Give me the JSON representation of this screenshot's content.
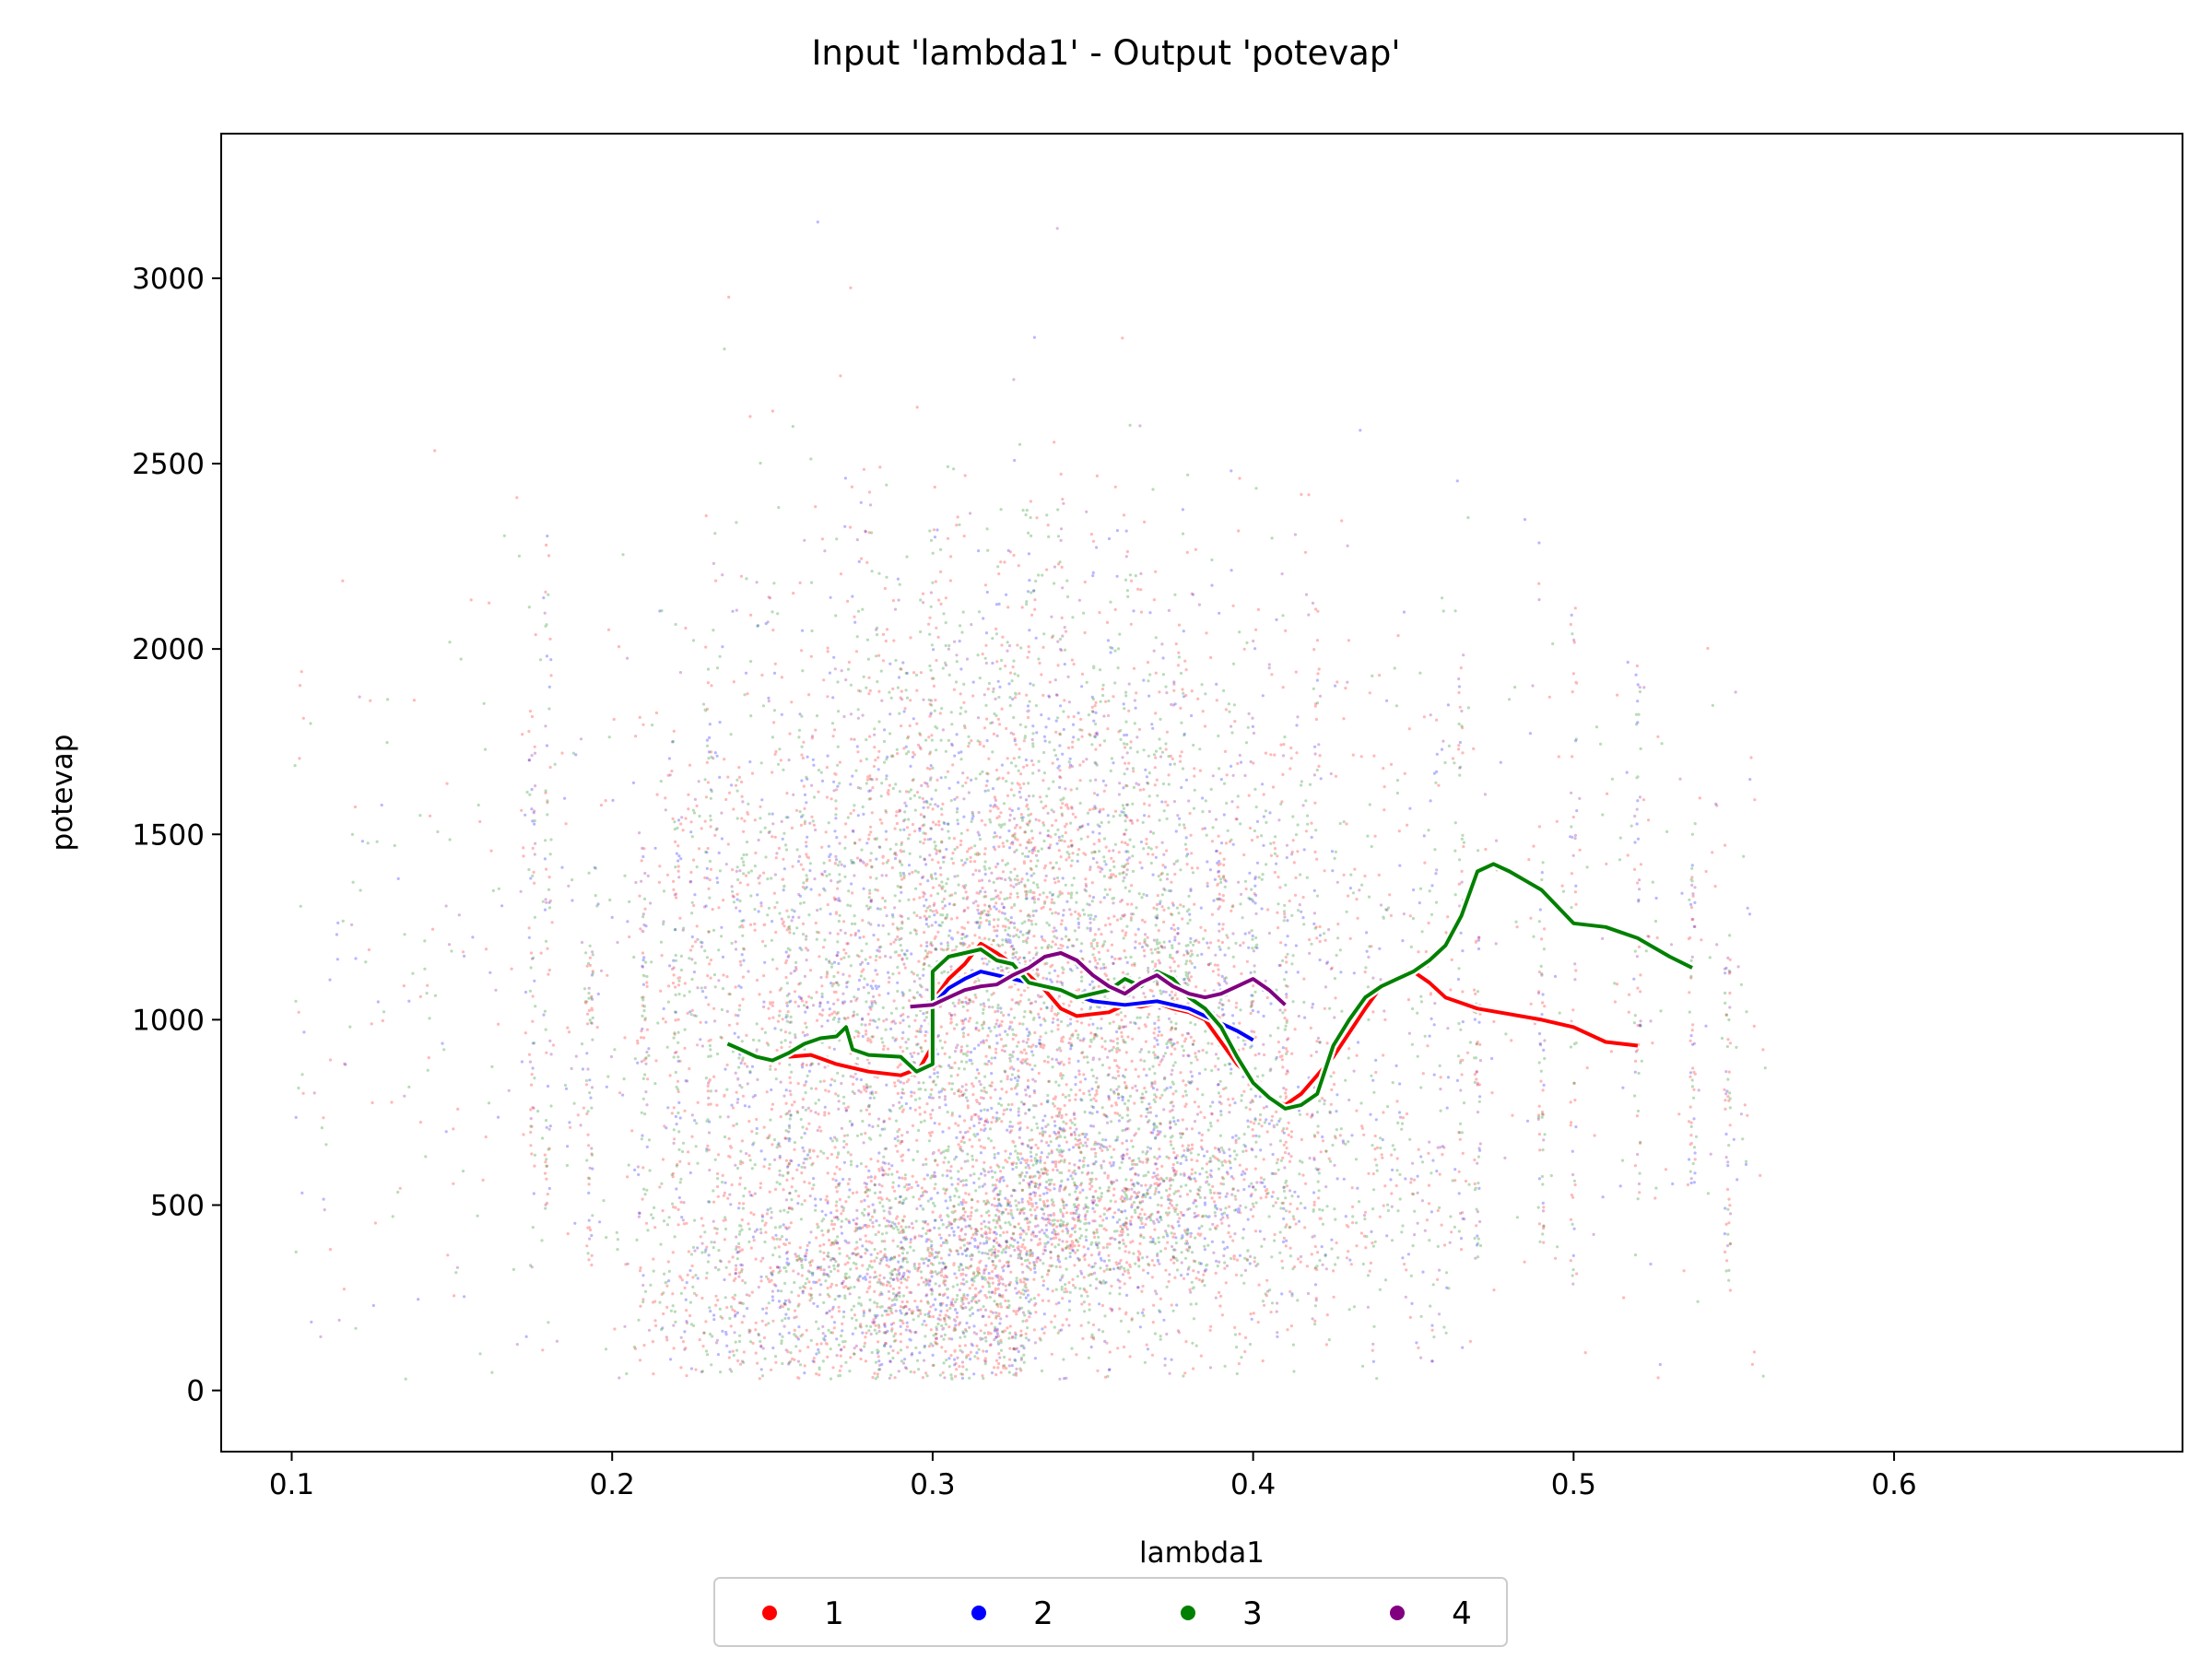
{
  "chart_data": {
    "type": "scatter",
    "title": "Input 'lambda1' - Output 'potevap'",
    "xlabel": "lambda1",
    "ylabel": "potevap",
    "xlim": [
      0.078,
      0.69
    ],
    "ylim": [
      -165,
      3390
    ],
    "xticks": [
      0.1,
      0.2,
      0.3,
      0.4,
      0.5,
      0.6
    ],
    "yticks": [
      0,
      500,
      1000,
      1500,
      2000,
      2500,
      3000
    ],
    "xtick_labels": [
      "0.1",
      "0.2",
      "0.3",
      "0.4",
      "0.5",
      "0.6"
    ],
    "ytick_labels": [
      "0",
      "500",
      "1000",
      "1500",
      "2000",
      "2500",
      "3000"
    ],
    "grid": false,
    "legend_placement": "bottom-center, below axes",
    "series": [
      {
        "name": "1",
        "color": "#ff0000",
        "trend": [
          [
            0.255,
            900
          ],
          [
            0.262,
            905
          ],
          [
            0.27,
            880
          ],
          [
            0.28,
            860
          ],
          [
            0.29,
            850
          ],
          [
            0.296,
            870
          ],
          [
            0.3,
            930
          ],
          [
            0.3,
            1050
          ],
          [
            0.305,
            1110
          ],
          [
            0.31,
            1150
          ],
          [
            0.315,
            1205
          ],
          [
            0.32,
            1180
          ],
          [
            0.325,
            1150
          ],
          [
            0.33,
            1120
          ],
          [
            0.335,
            1080
          ],
          [
            0.34,
            1030
          ],
          [
            0.345,
            1010
          ],
          [
            0.35,
            1015
          ],
          [
            0.355,
            1020
          ],
          [
            0.36,
            1040
          ],
          [
            0.365,
            1035
          ],
          [
            0.37,
            1045
          ],
          [
            0.375,
            1030
          ],
          [
            0.38,
            1020
          ],
          [
            0.385,
            1000
          ],
          [
            0.39,
            940
          ],
          [
            0.395,
            880
          ],
          [
            0.4,
            840
          ],
          [
            0.405,
            790
          ],
          [
            0.41,
            770
          ],
          [
            0.415,
            800
          ],
          [
            0.425,
            900
          ],
          [
            0.435,
            1030
          ],
          [
            0.44,
            1090
          ],
          [
            0.445,
            1110
          ],
          [
            0.45,
            1130
          ],
          [
            0.455,
            1100
          ],
          [
            0.46,
            1060
          ],
          [
            0.465,
            1045
          ],
          [
            0.47,
            1030
          ],
          [
            0.48,
            1015
          ],
          [
            0.49,
            1000
          ],
          [
            0.5,
            980
          ],
          [
            0.51,
            940
          ],
          [
            0.52,
            930
          ]
        ]
      },
      {
        "name": "2",
        "color": "#0000ff",
        "trend": [
          [
            0.3,
            1040
          ],
          [
            0.305,
            1085
          ],
          [
            0.31,
            1110
          ],
          [
            0.315,
            1130
          ],
          [
            0.32,
            1120
          ],
          [
            0.33,
            1100
          ],
          [
            0.34,
            1080
          ],
          [
            0.35,
            1050
          ],
          [
            0.36,
            1040
          ],
          [
            0.37,
            1050
          ],
          [
            0.38,
            1030
          ],
          [
            0.385,
            1010
          ],
          [
            0.39,
            990
          ],
          [
            0.395,
            970
          ],
          [
            0.4,
            945
          ]
        ]
      },
      {
        "name": "3",
        "color": "#008000",
        "trend": [
          [
            0.236,
            935
          ],
          [
            0.24,
            920
          ],
          [
            0.245,
            900
          ],
          [
            0.25,
            890
          ],
          [
            0.255,
            910
          ],
          [
            0.26,
            935
          ],
          [
            0.265,
            950
          ],
          [
            0.27,
            955
          ],
          [
            0.273,
            980
          ],
          [
            0.275,
            920
          ],
          [
            0.28,
            905
          ],
          [
            0.29,
            900
          ],
          [
            0.295,
            860
          ],
          [
            0.3,
            880
          ],
          [
            0.3,
            1130
          ],
          [
            0.305,
            1170
          ],
          [
            0.31,
            1180
          ],
          [
            0.315,
            1190
          ],
          [
            0.32,
            1160
          ],
          [
            0.325,
            1150
          ],
          [
            0.33,
            1100
          ],
          [
            0.335,
            1090
          ],
          [
            0.34,
            1080
          ],
          [
            0.345,
            1060
          ],
          [
            0.35,
            1070
          ],
          [
            0.355,
            1080
          ],
          [
            0.36,
            1110
          ],
          [
            0.365,
            1090
          ],
          [
            0.37,
            1130
          ],
          [
            0.375,
            1110
          ],
          [
            0.38,
            1060
          ],
          [
            0.385,
            1030
          ],
          [
            0.39,
            980
          ],
          [
            0.395,
            900
          ],
          [
            0.4,
            830
          ],
          [
            0.405,
            790
          ],
          [
            0.41,
            760
          ],
          [
            0.415,
            770
          ],
          [
            0.42,
            800
          ],
          [
            0.425,
            930
          ],
          [
            0.43,
            1000
          ],
          [
            0.435,
            1060
          ],
          [
            0.44,
            1090
          ],
          [
            0.445,
            1110
          ],
          [
            0.45,
            1130
          ],
          [
            0.455,
            1160
          ],
          [
            0.46,
            1200
          ],
          [
            0.465,
            1280
          ],
          [
            0.47,
            1400
          ],
          [
            0.475,
            1420
          ],
          [
            0.48,
            1400
          ],
          [
            0.49,
            1350
          ],
          [
            0.5,
            1260
          ],
          [
            0.51,
            1250
          ],
          [
            0.52,
            1220
          ],
          [
            0.53,
            1170
          ],
          [
            0.537,
            1140
          ]
        ]
      },
      {
        "name": "4",
        "color": "#800080",
        "trend": [
          [
            0.293,
            1035
          ],
          [
            0.3,
            1040
          ],
          [
            0.305,
            1060
          ],
          [
            0.31,
            1080
          ],
          [
            0.315,
            1090
          ],
          [
            0.32,
            1095
          ],
          [
            0.325,
            1120
          ],
          [
            0.33,
            1140
          ],
          [
            0.335,
            1170
          ],
          [
            0.34,
            1180
          ],
          [
            0.345,
            1160
          ],
          [
            0.35,
            1120
          ],
          [
            0.355,
            1090
          ],
          [
            0.36,
            1070
          ],
          [
            0.365,
            1100
          ],
          [
            0.37,
            1120
          ],
          [
            0.375,
            1090
          ],
          [
            0.38,
            1070
          ],
          [
            0.385,
            1060
          ],
          [
            0.39,
            1070
          ],
          [
            0.395,
            1090
          ],
          [
            0.4,
            1110
          ],
          [
            0.405,
            1080
          ],
          [
            0.41,
            1040
          ]
        ]
      }
    ]
  }
}
